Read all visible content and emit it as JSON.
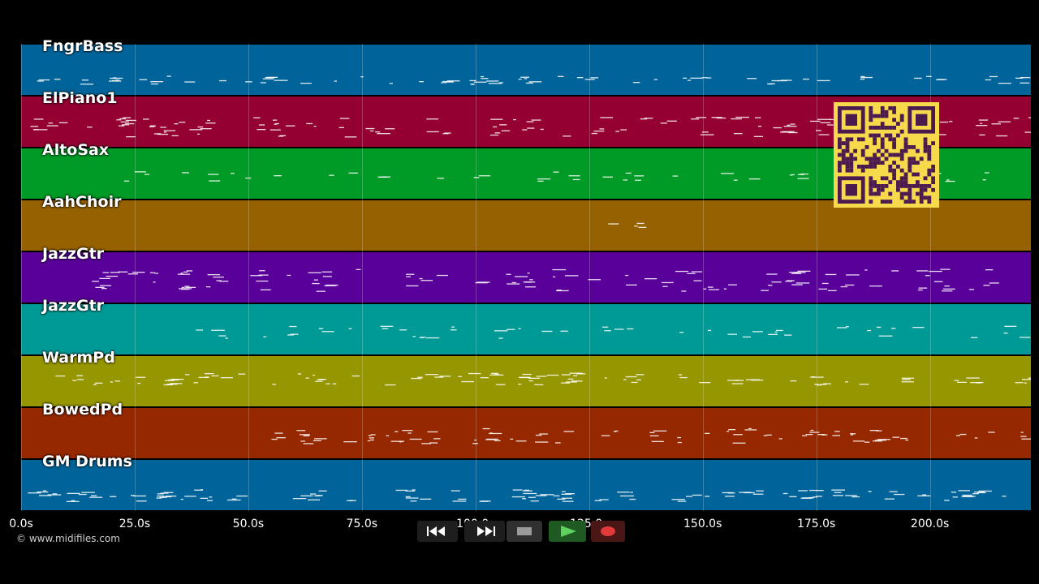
{
  "tracks": [
    {
      "name": "FngrBass",
      "color": "#00649a",
      "density": 0.6,
      "pitch": 0.7,
      "spread": 0.08,
      "start_s": 2,
      "end_s": 222
    },
    {
      "name": "ElPiano1",
      "color": "#940032",
      "density": 1.0,
      "pitch": 0.6,
      "spread": 0.2,
      "start_s": 2,
      "end_s": 222
    },
    {
      "name": "AltoSax",
      "color": "#009a26",
      "density": 0.35,
      "pitch": 0.55,
      "spread": 0.1,
      "start_s": 22,
      "end_s": 217
    },
    {
      "name": "AahChoir",
      "color": "#966100",
      "density": 0.02,
      "pitch": 0.48,
      "spread": 0.05,
      "start_s": 123,
      "end_s": 136
    },
    {
      "name": "JazzGtr",
      "color": "#5a009a",
      "density": 1.0,
      "pitch": 0.55,
      "spread": 0.22,
      "start_s": 14,
      "end_s": 216
    },
    {
      "name": "JazzGtr",
      "color": "#009a96",
      "density": 0.45,
      "pitch": 0.55,
      "spread": 0.12,
      "start_s": 38,
      "end_s": 222
    },
    {
      "name": "WarmPd",
      "color": "#969600",
      "density": 0.8,
      "pitch": 0.45,
      "spread": 0.12,
      "start_s": 6,
      "end_s": 222
    },
    {
      "name": "BowedPd",
      "color": "#962800",
      "density": 0.9,
      "pitch": 0.55,
      "spread": 0.15,
      "start_s": 55,
      "end_s": 222
    },
    {
      "name": "GM Drums",
      "color": "#00649a",
      "density": 1.0,
      "pitch": 0.7,
      "spread": 0.12,
      "start_s": 1,
      "end_s": 216
    }
  ],
  "timeline": {
    "ticks": [
      "0.0s",
      "25.0s",
      "50.0s",
      "75.0s",
      "100.0s",
      "125.0s",
      "150.0s",
      "175.0s",
      "200.0s"
    ],
    "tick_seconds": [
      0,
      25,
      50,
      75,
      100,
      125,
      150,
      175,
      200
    ],
    "max_seconds": 222
  },
  "transport": {
    "rewind_icon": "rewind-icon",
    "fast_forward_icon": "fast-forward-icon",
    "stop_icon": "stop-icon",
    "play_icon": "play-icon",
    "record_icon": "record-icon"
  },
  "copyright": "© www.midifiles.com",
  "qr_code_icon": "qr-code-icon"
}
